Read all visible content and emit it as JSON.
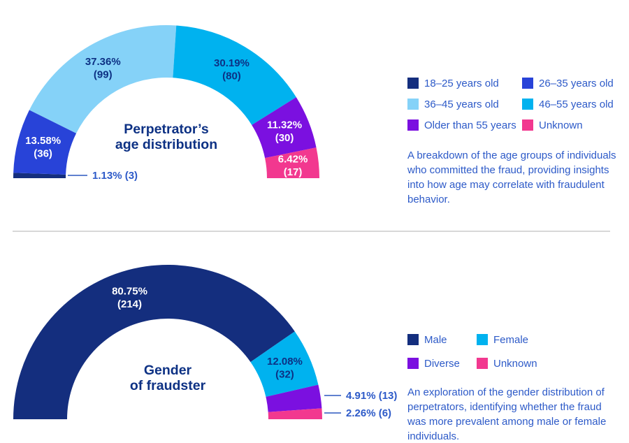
{
  "colors": {
    "background": "#ffffff",
    "title": "#0d3184",
    "text": "#2d5ac8",
    "leader_line": "#4a6fc8",
    "divider": "#d8d8d8"
  },
  "chart_data": [
    {
      "type": "half-donut",
      "title": "Perpetrator’s\nage distribution",
      "legend_position": "right",
      "segments": [
        {
          "label": "18–25 years old",
          "percent": 1.13,
          "count": 3,
          "color": "#142e7e",
          "placement": "outside"
        },
        {
          "label": "26–35 years old",
          "percent": 13.58,
          "count": 36,
          "color": "#2843d8",
          "placement": "inside",
          "label_color": "#ffffff"
        },
        {
          "label": "36–45 years old",
          "percent": 37.36,
          "count": 99,
          "color": "#85d2f8",
          "placement": "inside",
          "label_color": "#0d3184"
        },
        {
          "label": "46–55 years old",
          "percent": 30.19,
          "count": 80,
          "color": "#00b2ef",
          "placement": "inside",
          "label_color": "#0d3184"
        },
        {
          "label": "Older than 55 years",
          "percent": 11.32,
          "count": 30,
          "color": "#7b10e0",
          "placement": "inside",
          "label_color": "#ffffff"
        },
        {
          "label": "Unknown",
          "percent": 6.42,
          "count": 17,
          "color": "#f2388f",
          "placement": "inside",
          "label_color": "#ffffff"
        }
      ],
      "description": "A breakdown of the age groups of individuals\nwho committed the fraud, providing insights\ninto how age may correlate with fraudulent\nbehavior."
    },
    {
      "type": "half-donut",
      "title": "Gender\nof fraudster",
      "legend_position": "right",
      "segments": [
        {
          "label": "Male",
          "percent": 80.75,
          "count": 214,
          "color": "#142e7e",
          "placement": "inside",
          "label_color": "#ffffff"
        },
        {
          "label": "Female",
          "percent": 12.08,
          "count": 32,
          "color": "#00b2ef",
          "placement": "inside",
          "label_color": "#0d3184"
        },
        {
          "label": "Diverse",
          "percent": 4.91,
          "count": 13,
          "color": "#7b10e0",
          "placement": "outside"
        },
        {
          "label": "Unknown",
          "percent": 2.26,
          "count": 6,
          "color": "#f2388f",
          "placement": "outside"
        }
      ],
      "description": "An exploration of the gender distribution of\nperpetrators, identifying whether the fraud\nwas more prevalent among male or female\nindividuals."
    }
  ]
}
